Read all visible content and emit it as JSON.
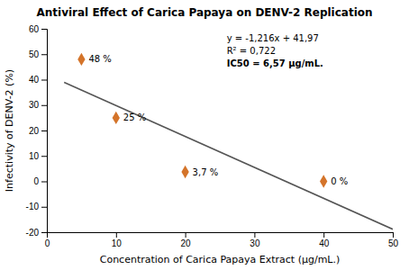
{
  "chart_data": {
    "type": "scatter",
    "title": "Antiviral Effect of Carica Papaya on DENV-2 Replication",
    "xlabel": "Concentration of Carica Papaya Extract (μg/mL.)",
    "ylabel": "Infectivity of DENV-2 (%)",
    "xlim": [
      0,
      50
    ],
    "xticks": [
      0,
      10,
      20,
      30,
      40,
      50
    ],
    "ylim": [
      -20,
      60
    ],
    "yticks": [
      -20,
      -10,
      0,
      10,
      20,
      30,
      40,
      50,
      60
    ],
    "grid": false,
    "data_labels": true,
    "series": [
      {
        "type": "scatter",
        "x": [
          5,
          10,
          20,
          40
        ],
        "values": [
          48,
          25,
          3.7,
          0
        ],
        "value_labels": [
          "48 %",
          "25 %",
          "3,7 %",
          "0 %"
        ],
        "color": "#d4742a",
        "marker": "diamond"
      },
      {
        "type": "line",
        "x": [
          2.5,
          50
        ],
        "values": [
          38.93,
          -18.83
        ],
        "color": "#555555",
        "line_style": "solid"
      }
    ],
    "annotations": [
      "y = -1,216x + 41,97",
      "R² = 0,722",
      "IC50 = 6,57 μg/mL."
    ]
  }
}
